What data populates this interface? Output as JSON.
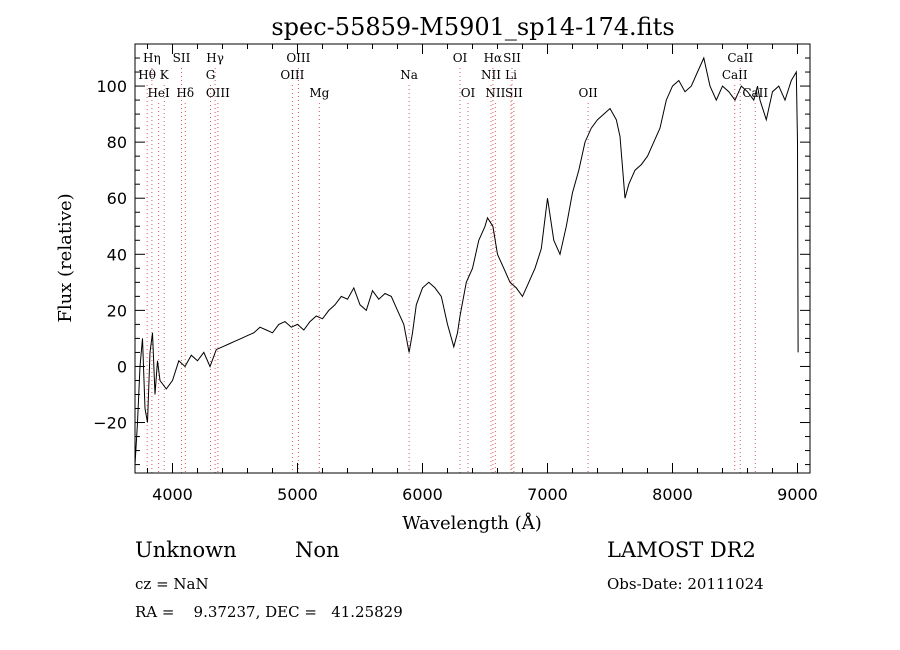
{
  "chart_data": {
    "type": "line",
    "title": "spec-55859-M5901_sp14-174.fits",
    "xlabel": "Wavelength (Å)",
    "ylabel": "Flux (relative)",
    "xlim": [
      3700,
      9100
    ],
    "ylim": [
      -38,
      115
    ],
    "xticks": [
      4000,
      5000,
      6000,
      7000,
      8000,
      9000
    ],
    "yticks": [
      -20,
      0,
      20,
      40,
      60,
      80,
      100
    ],
    "grid": false,
    "line_color": "#000000",
    "marker_color": "#e05a5a",
    "series": [
      {
        "x": [
          3700,
          3720,
          3740,
          3760,
          3780,
          3800,
          3820,
          3840,
          3860,
          3880,
          3900,
          3950,
          4000,
          4050,
          4100,
          4150,
          4200,
          4250,
          4300,
          4350,
          4400,
          4450,
          4500,
          4550,
          4600,
          4650,
          4700,
          4750,
          4800,
          4850,
          4900,
          4950,
          5000,
          5050,
          5100,
          5150,
          5200,
          5250,
          5300,
          5350,
          5400,
          5450,
          5500,
          5550,
          5600,
          5650,
          5700,
          5750,
          5800,
          5850,
          5893,
          5920,
          5950,
          6000,
          6050,
          6100,
          6150,
          6200,
          6250,
          6280,
          6300,
          6350,
          6400,
          6450,
          6500,
          6520,
          6563,
          6600,
          6650,
          6700,
          6750,
          6800,
          6850,
          6900,
          6950,
          7000,
          7050,
          7100,
          7150,
          7200,
          7250,
          7300,
          7350,
          7400,
          7450,
          7500,
          7550,
          7580,
          7620,
          7650,
          7700,
          7750,
          7800,
          7850,
          7900,
          7950,
          8000,
          8050,
          8100,
          8150,
          8200,
          8250,
          8300,
          8350,
          8400,
          8450,
          8500,
          8550,
          8600,
          8650,
          8680,
          8700,
          8750,
          8800,
          8850,
          8900,
          8950,
          8990,
          9000,
          9005
        ],
        "y": [
          -35,
          -20,
          0,
          10,
          -15,
          -20,
          5,
          12,
          -10,
          2,
          -5,
          -8,
          -5,
          2,
          0,
          4,
          2,
          5,
          0,
          6,
          7,
          8,
          9,
          10,
          11,
          12,
          14,
          13,
          12,
          15,
          16,
          14,
          15,
          13,
          16,
          18,
          17,
          20,
          22,
          25,
          24,
          28,
          22,
          20,
          27,
          24,
          26,
          25,
          20,
          15,
          5,
          12,
          22,
          28,
          30,
          28,
          25,
          15,
          7,
          12,
          18,
          30,
          35,
          45,
          50,
          53,
          50,
          40,
          35,
          30,
          28,
          25,
          30,
          35,
          42,
          60,
          45,
          40,
          50,
          62,
          70,
          80,
          85,
          88,
          90,
          92,
          88,
          82,
          60,
          65,
          70,
          72,
          75,
          80,
          85,
          95,
          100,
          102,
          98,
          100,
          105,
          110,
          100,
          95,
          100,
          98,
          95,
          100,
          98,
          95,
          100,
          95,
          88,
          98,
          100,
          95,
          102,
          105,
          80,
          5
        ]
      }
    ],
    "lines": [
      {
        "label": "Hη",
        "wl": 3835,
        "row": 0
      },
      {
        "label": "Hθ",
        "wl": 3797,
        "row": 1
      },
      {
        "label": "K",
        "wl": 3934,
        "row": 1
      },
      {
        "label": "HeI",
        "wl": 3889,
        "row": 2
      },
      {
        "label": "SII",
        "wl": 4072,
        "row": 0
      },
      {
        "label": "Hδ",
        "wl": 4102,
        "row": 2
      },
      {
        "label": "Hγ",
        "wl": 4341,
        "row": 0
      },
      {
        "label": "G",
        "wl": 4304,
        "row": 1
      },
      {
        "label": "OIII",
        "wl": 4363,
        "row": 2
      },
      {
        "label": "OIII",
        "wl": 5007,
        "row": 0
      },
      {
        "label": "OIII",
        "wl": 4959,
        "row": 1
      },
      {
        "label": "Mg",
        "wl": 5175,
        "row": 2
      },
      {
        "label": "Na",
        "wl": 5893,
        "row": 1
      },
      {
        "label": "OI",
        "wl": 6300,
        "row": 0
      },
      {
        "label": "OI",
        "wl": 6364,
        "row": 2
      },
      {
        "label": "Hα",
        "wl": 6563,
        "row": 0
      },
      {
        "label": "SII",
        "wl": 6716,
        "row": 0
      },
      {
        "label": "NII",
        "wl": 6548,
        "row": 1
      },
      {
        "label": "Li",
        "wl": 6708,
        "row": 1
      },
      {
        "label": "NII",
        "wl": 6583,
        "row": 2
      },
      {
        "label": "SII",
        "wl": 6731,
        "row": 2
      },
      {
        "label": "OII",
        "wl": 7325,
        "row": 2
      },
      {
        "label": "CaII",
        "wl": 8542,
        "row": 0
      },
      {
        "label": "CaII",
        "wl": 8498,
        "row": 1
      },
      {
        "label": "CaII",
        "wl": 8662,
        "row": 2
      }
    ]
  },
  "info": {
    "class": "Unknown",
    "subclass": "Non",
    "survey": "LAMOST DR2",
    "cz": "cz = NaN",
    "obs_date": "Obs-Date: 20111024",
    "radec": "RA =    9.37237, DEC =   41.25829"
  }
}
